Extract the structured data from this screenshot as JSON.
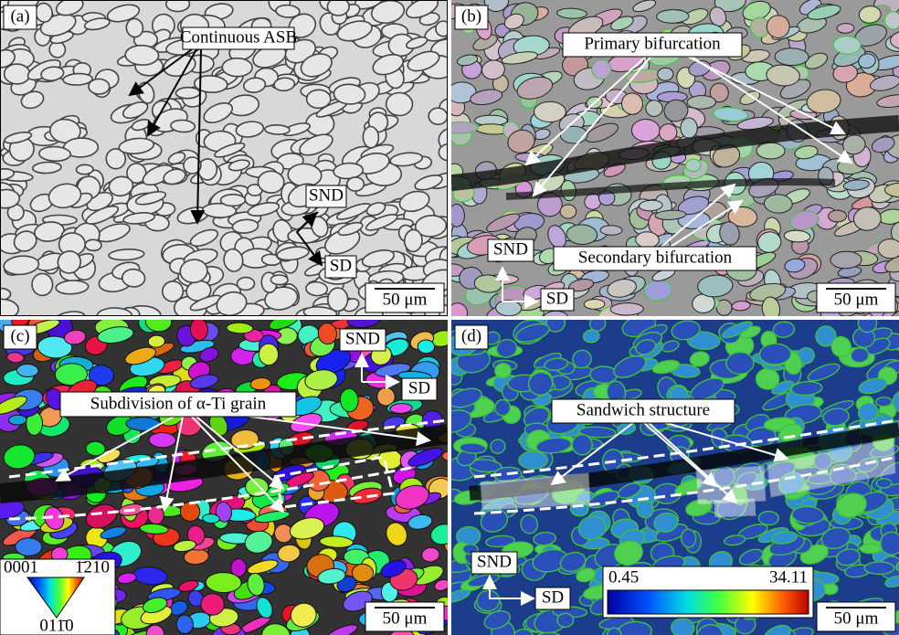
{
  "panels": [
    {
      "label": "(a)",
      "annotations": [
        "Continuous ASB",
        "SND",
        "SD"
      ],
      "scale_bar": "50 μm"
    },
    {
      "label": "(b)",
      "annotations": [
        "Primary bifurcation",
        "Secondary bifurcation",
        "SND",
        "SD"
      ],
      "scale_bar": "50 μm"
    },
    {
      "label": "(c)",
      "annotations": [
        "Subdivision of α-Ti grain",
        "SND",
        "SD"
      ],
      "legend": [
        "0001",
        "1̄210",
        "011̄0"
      ],
      "scale_bar": "50 μm"
    },
    {
      "label": "(d)",
      "annotations": [
        "Sandwich structure",
        "SND",
        "SD"
      ],
      "colorbar": [
        "0.45",
        "34.11"
      ],
      "scale_bar": "50 μm"
    }
  ]
}
